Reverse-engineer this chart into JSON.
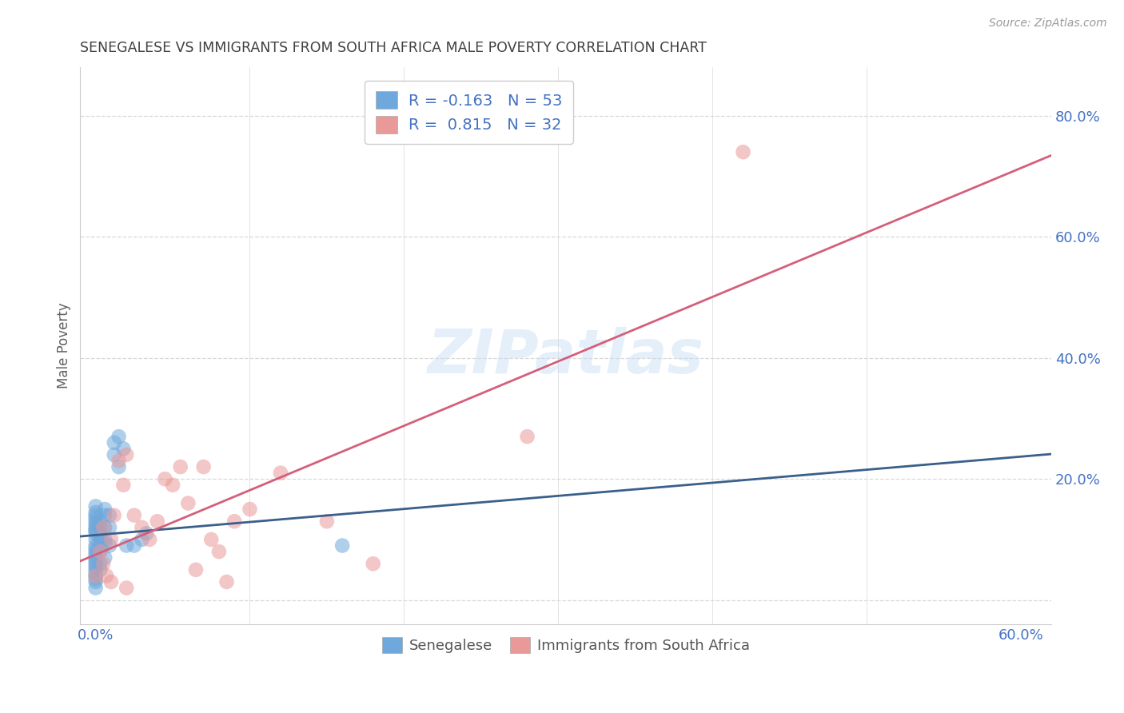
{
  "title": "SENEGALESE VS IMMIGRANTS FROM SOUTH AFRICA MALE POVERTY CORRELATION CHART",
  "source": "Source: ZipAtlas.com",
  "ylabel": "Male Poverty",
  "xlim": [
    -0.01,
    0.62
  ],
  "ylim": [
    -0.04,
    0.88
  ],
  "xticks": [
    0.0,
    0.1,
    0.2,
    0.3,
    0.4,
    0.5,
    0.6
  ],
  "xticklabels": [
    "0.0%",
    "",
    "",
    "",
    "",
    "",
    "60.0%"
  ],
  "yticks": [
    0.0,
    0.2,
    0.4,
    0.6,
    0.8
  ],
  "yticklabels": [
    "",
    "20.0%",
    "40.0%",
    "60.0%",
    "80.0%"
  ],
  "blue_color": "#6fa8dc",
  "pink_color": "#ea9999",
  "blue_line_color": "#3a5f8a",
  "pink_line_color": "#d45f7a",
  "legend_R_blue": "-0.163",
  "legend_N_blue": "53",
  "legend_R_pink": "0.815",
  "legend_N_pink": "32",
  "blue_scatter_x": [
    0.0,
    0.0,
    0.0,
    0.0,
    0.0,
    0.0,
    0.0,
    0.0,
    0.0,
    0.0,
    0.0,
    0.0,
    0.0,
    0.0,
    0.0,
    0.0,
    0.0,
    0.0,
    0.0,
    0.0,
    0.003,
    0.003,
    0.003,
    0.003,
    0.003,
    0.003,
    0.003,
    0.003,
    0.006,
    0.006,
    0.006,
    0.006,
    0.006,
    0.009,
    0.009,
    0.009,
    0.012,
    0.012,
    0.015,
    0.015,
    0.018,
    0.02,
    0.025,
    0.03,
    0.033,
    0.0,
    0.0,
    0.0,
    0.0,
    0.0,
    0.003,
    0.006,
    0.16
  ],
  "blue_scatter_y": [
    0.14,
    0.13,
    0.12,
    0.115,
    0.11,
    0.1,
    0.09,
    0.085,
    0.08,
    0.075,
    0.07,
    0.065,
    0.06,
    0.055,
    0.05,
    0.045,
    0.04,
    0.035,
    0.03,
    0.02,
    0.13,
    0.12,
    0.11,
    0.1,
    0.09,
    0.08,
    0.06,
    0.05,
    0.15,
    0.14,
    0.12,
    0.1,
    0.07,
    0.14,
    0.12,
    0.09,
    0.26,
    0.24,
    0.27,
    0.22,
    0.25,
    0.09,
    0.09,
    0.1,
    0.11,
    0.155,
    0.145,
    0.135,
    0.125,
    0.115,
    0.105,
    0.095,
    0.09
  ],
  "pink_scatter_x": [
    0.0,
    0.003,
    0.005,
    0.007,
    0.01,
    0.012,
    0.015,
    0.018,
    0.02,
    0.025,
    0.03,
    0.035,
    0.04,
    0.045,
    0.05,
    0.055,
    0.06,
    0.065,
    0.07,
    0.075,
    0.08,
    0.085,
    0.09,
    0.1,
    0.12,
    0.15,
    0.18,
    0.28,
    0.42,
    0.005,
    0.01,
    0.02
  ],
  "pink_scatter_y": [
    0.04,
    0.08,
    0.12,
    0.04,
    0.03,
    0.14,
    0.23,
    0.19,
    0.24,
    0.14,
    0.12,
    0.1,
    0.13,
    0.2,
    0.19,
    0.22,
    0.16,
    0.05,
    0.22,
    0.1,
    0.08,
    0.03,
    0.13,
    0.15,
    0.21,
    0.13,
    0.06,
    0.27,
    0.74,
    0.06,
    0.1,
    0.02
  ],
  "watermark": "ZIPatlas",
  "background_color": "#ffffff",
  "grid_color": "#d8d8d8",
  "title_color": "#404040",
  "tick_label_color": "#4472c4",
  "ylabel_color": "#606060"
}
